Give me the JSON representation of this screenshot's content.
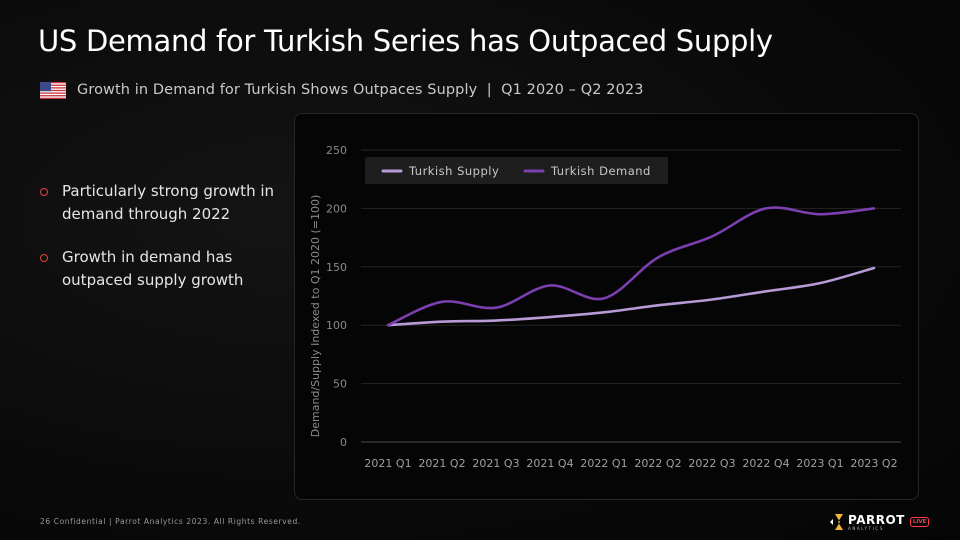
{
  "slide": {
    "title": "US Demand for Turkish Series has Outpaced Supply",
    "subtitle": "Growth in Demand for Turkish Shows Outpaces Supply  |  Q1 2020 – Q2 2023",
    "flag_icon": "us-flag-icon",
    "bullets": [
      "Particularly strong growth in demand through 2022",
      "Growth in demand has outpaced supply growth"
    ],
    "footer": "26  Confidential  |  Parrot Analytics 2023. All Rights Reserved.",
    "logo": {
      "word": "PARROT",
      "sub": "ANALYTICS",
      "badge": "LIVE"
    },
    "colors": {
      "bullet": "#e2463f",
      "supply": "#b79ad6",
      "demand": "#7b3fb0"
    }
  },
  "chart_data": {
    "type": "line",
    "title": "",
    "xlabel": "",
    "ylabel": "Demand/Supply Indexed to Q1 2020 (=100)",
    "categories": [
      "2021 Q1",
      "2021 Q2",
      "2021 Q3",
      "2021 Q4",
      "2022 Q1",
      "2022 Q2",
      "2022 Q3",
      "2022 Q4",
      "2023 Q1",
      "2023 Q2"
    ],
    "yticks": [
      0,
      50,
      100,
      150,
      200,
      250
    ],
    "ylim": [
      0,
      250
    ],
    "grid": true,
    "legend_position": "top-left",
    "series": [
      {
        "name": "Turkish Supply",
        "color": "#b79ad6",
        "values": [
          100,
          103,
          104,
          107,
          111,
          117,
          122,
          129,
          136,
          149
        ]
      },
      {
        "name": "Turkish Demand",
        "color": "#7b3fb0",
        "values": [
          100,
          120,
          115,
          134,
          123,
          158,
          176,
          200,
          195,
          200
        ]
      }
    ]
  }
}
